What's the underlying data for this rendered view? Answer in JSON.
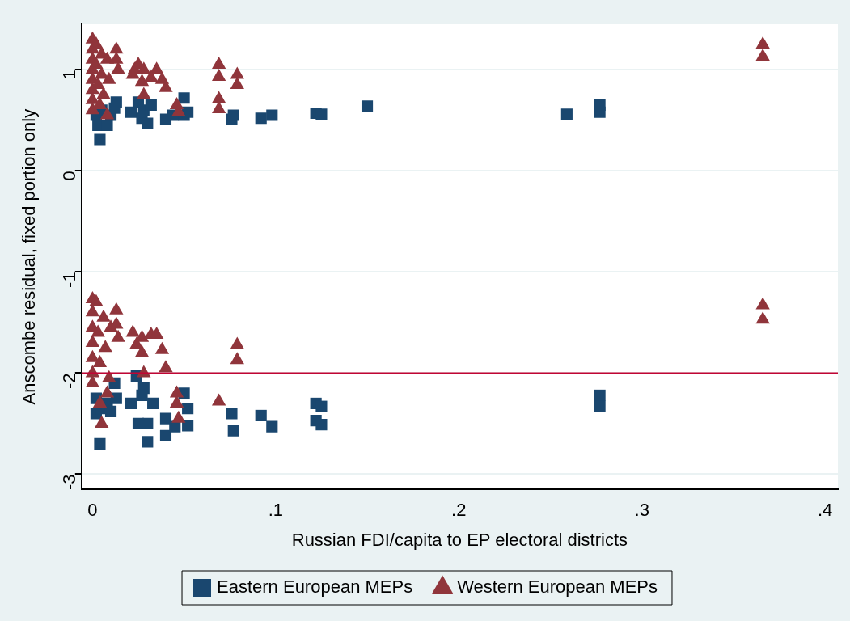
{
  "chart_data": {
    "type": "scatter",
    "xlabel": "Russian FDI/capita to EP electoral districts",
    "ylabel": "Anscombe residual, fixed portion only",
    "xlim": [
      -0.006,
      0.407
    ],
    "ylim": [
      -3.15,
      1.45
    ],
    "xticks": [
      0,
      {
        "value": 0.1,
        "label": ".1"
      },
      {
        "value": 0.2,
        "label": ".2"
      },
      {
        "value": 0.3,
        "label": ".3"
      },
      {
        "value": 0.4,
        "label": ".4"
      }
    ],
    "yticks": [
      -3,
      -2,
      -1,
      0,
      1
    ],
    "grid": "y",
    "legend": "bottom",
    "ref_lines": [
      {
        "axis": "y",
        "value": -2,
        "color": "#c10534"
      }
    ],
    "series": [
      {
        "name": "Eastern European MEPs",
        "color": "#1a476f",
        "marker": "square",
        "x": [
          0.002,
          0.003,
          0.004,
          0.005,
          0.008,
          0.01,
          0.012,
          0.013,
          0.021,
          0.025,
          0.027,
          0.028,
          0.03,
          0.032,
          0.04,
          0.044,
          0.05,
          0.05,
          0.052,
          0.076,
          0.077,
          0.092,
          0.098,
          0.122,
          0.125,
          0.15,
          0.259,
          0.277,
          0.277,
          0.002,
          0.002,
          0.004,
          0.005,
          0.008,
          0.01,
          0.012,
          0.013,
          0.021,
          0.024,
          0.025,
          0.027,
          0.028,
          0.03,
          0.03,
          0.033,
          0.04,
          0.04,
          0.045,
          0.05,
          0.052,
          0.052,
          0.076,
          0.077,
          0.092,
          0.098,
          0.122,
          0.122,
          0.125,
          0.125,
          0.277,
          0.277
        ],
        "values": [
          0.55,
          0.45,
          0.31,
          0.6,
          0.45,
          0.55,
          0.62,
          0.68,
          0.58,
          0.68,
          0.52,
          0.6,
          0.47,
          0.65,
          0.51,
          0.55,
          0.55,
          0.72,
          0.58,
          0.51,
          0.55,
          0.52,
          0.55,
          0.57,
          0.56,
          0.64,
          0.56,
          0.58,
          0.65,
          -2.25,
          -2.4,
          -2.7,
          -2.35,
          -2.3,
          -2.38,
          -2.1,
          -2.25,
          -2.3,
          -2.03,
          -2.5,
          -2.22,
          -2.15,
          -2.5,
          -2.68,
          -2.3,
          -2.45,
          -2.62,
          -2.53,
          -2.2,
          -2.35,
          -2.52,
          -2.4,
          -2.57,
          -2.42,
          -2.53,
          -2.3,
          -2.47,
          -2.33,
          -2.51,
          -2.22,
          -2.33
        ]
      },
      {
        "name": "Western European MEPs",
        "color": "#90353b",
        "marker": "triangle",
        "x": [
          0,
          0,
          0,
          0,
          0,
          0,
          0,
          0,
          0.002,
          0.002,
          0.003,
          0.004,
          0.005,
          0.005,
          0.006,
          0.008,
          0.008,
          0.009,
          0.013,
          0.013,
          0.014,
          0.022,
          0.023,
          0.025,
          0.027,
          0.028,
          0.028,
          0.032,
          0.035,
          0.038,
          0.04,
          0.046,
          0.047,
          0.069,
          0.069,
          0.069,
          0.069,
          0.079,
          0.079,
          0.366,
          0.366,
          0,
          0,
          0,
          0,
          0,
          0,
          0,
          0.002,
          0.003,
          0.004,
          0.004,
          0.005,
          0.006,
          0.007,
          0.008,
          0.009,
          0.01,
          0.013,
          0.013,
          0.014,
          0.022,
          0.024,
          0.027,
          0.027,
          0.028,
          0.032,
          0.035,
          0.038,
          0.04,
          0.046,
          0.046,
          0.047,
          0.069,
          0.079,
          0.079,
          0.366,
          0.366
        ],
        "values": [
          1.3,
          1.2,
          1.1,
          1.0,
          0.9,
          0.8,
          0.7,
          0.6,
          1.25,
          1.05,
          0.85,
          0.65,
          1.15,
          0.95,
          0.75,
          1.1,
          0.55,
          0.9,
          1.2,
          1.1,
          1.0,
          0.95,
          1.0,
          1.05,
          0.88,
          0.75,
          1.0,
          0.92,
          1.0,
          0.9,
          0.82,
          0.65,
          0.58,
          1.05,
          0.93,
          0.71,
          0.61,
          0.95,
          0.85,
          1.25,
          1.13,
          -1.27,
          -1.4,
          -1.55,
          -1.7,
          -1.85,
          -2.0,
          -2.1,
          -1.3,
          -1.6,
          -1.9,
          -2.3,
          -2.5,
          -1.45,
          -1.75,
          -2.2,
          -2.05,
          -1.55,
          -1.38,
          -1.52,
          -1.65,
          -1.6,
          -1.72,
          -1.65,
          -1.8,
          -2.0,
          -1.62,
          -1.62,
          -1.77,
          -1.95,
          -2.2,
          -2.3,
          -2.45,
          -2.28,
          -1.72,
          -1.87,
          -1.33,
          -1.47
        ]
      }
    ]
  }
}
